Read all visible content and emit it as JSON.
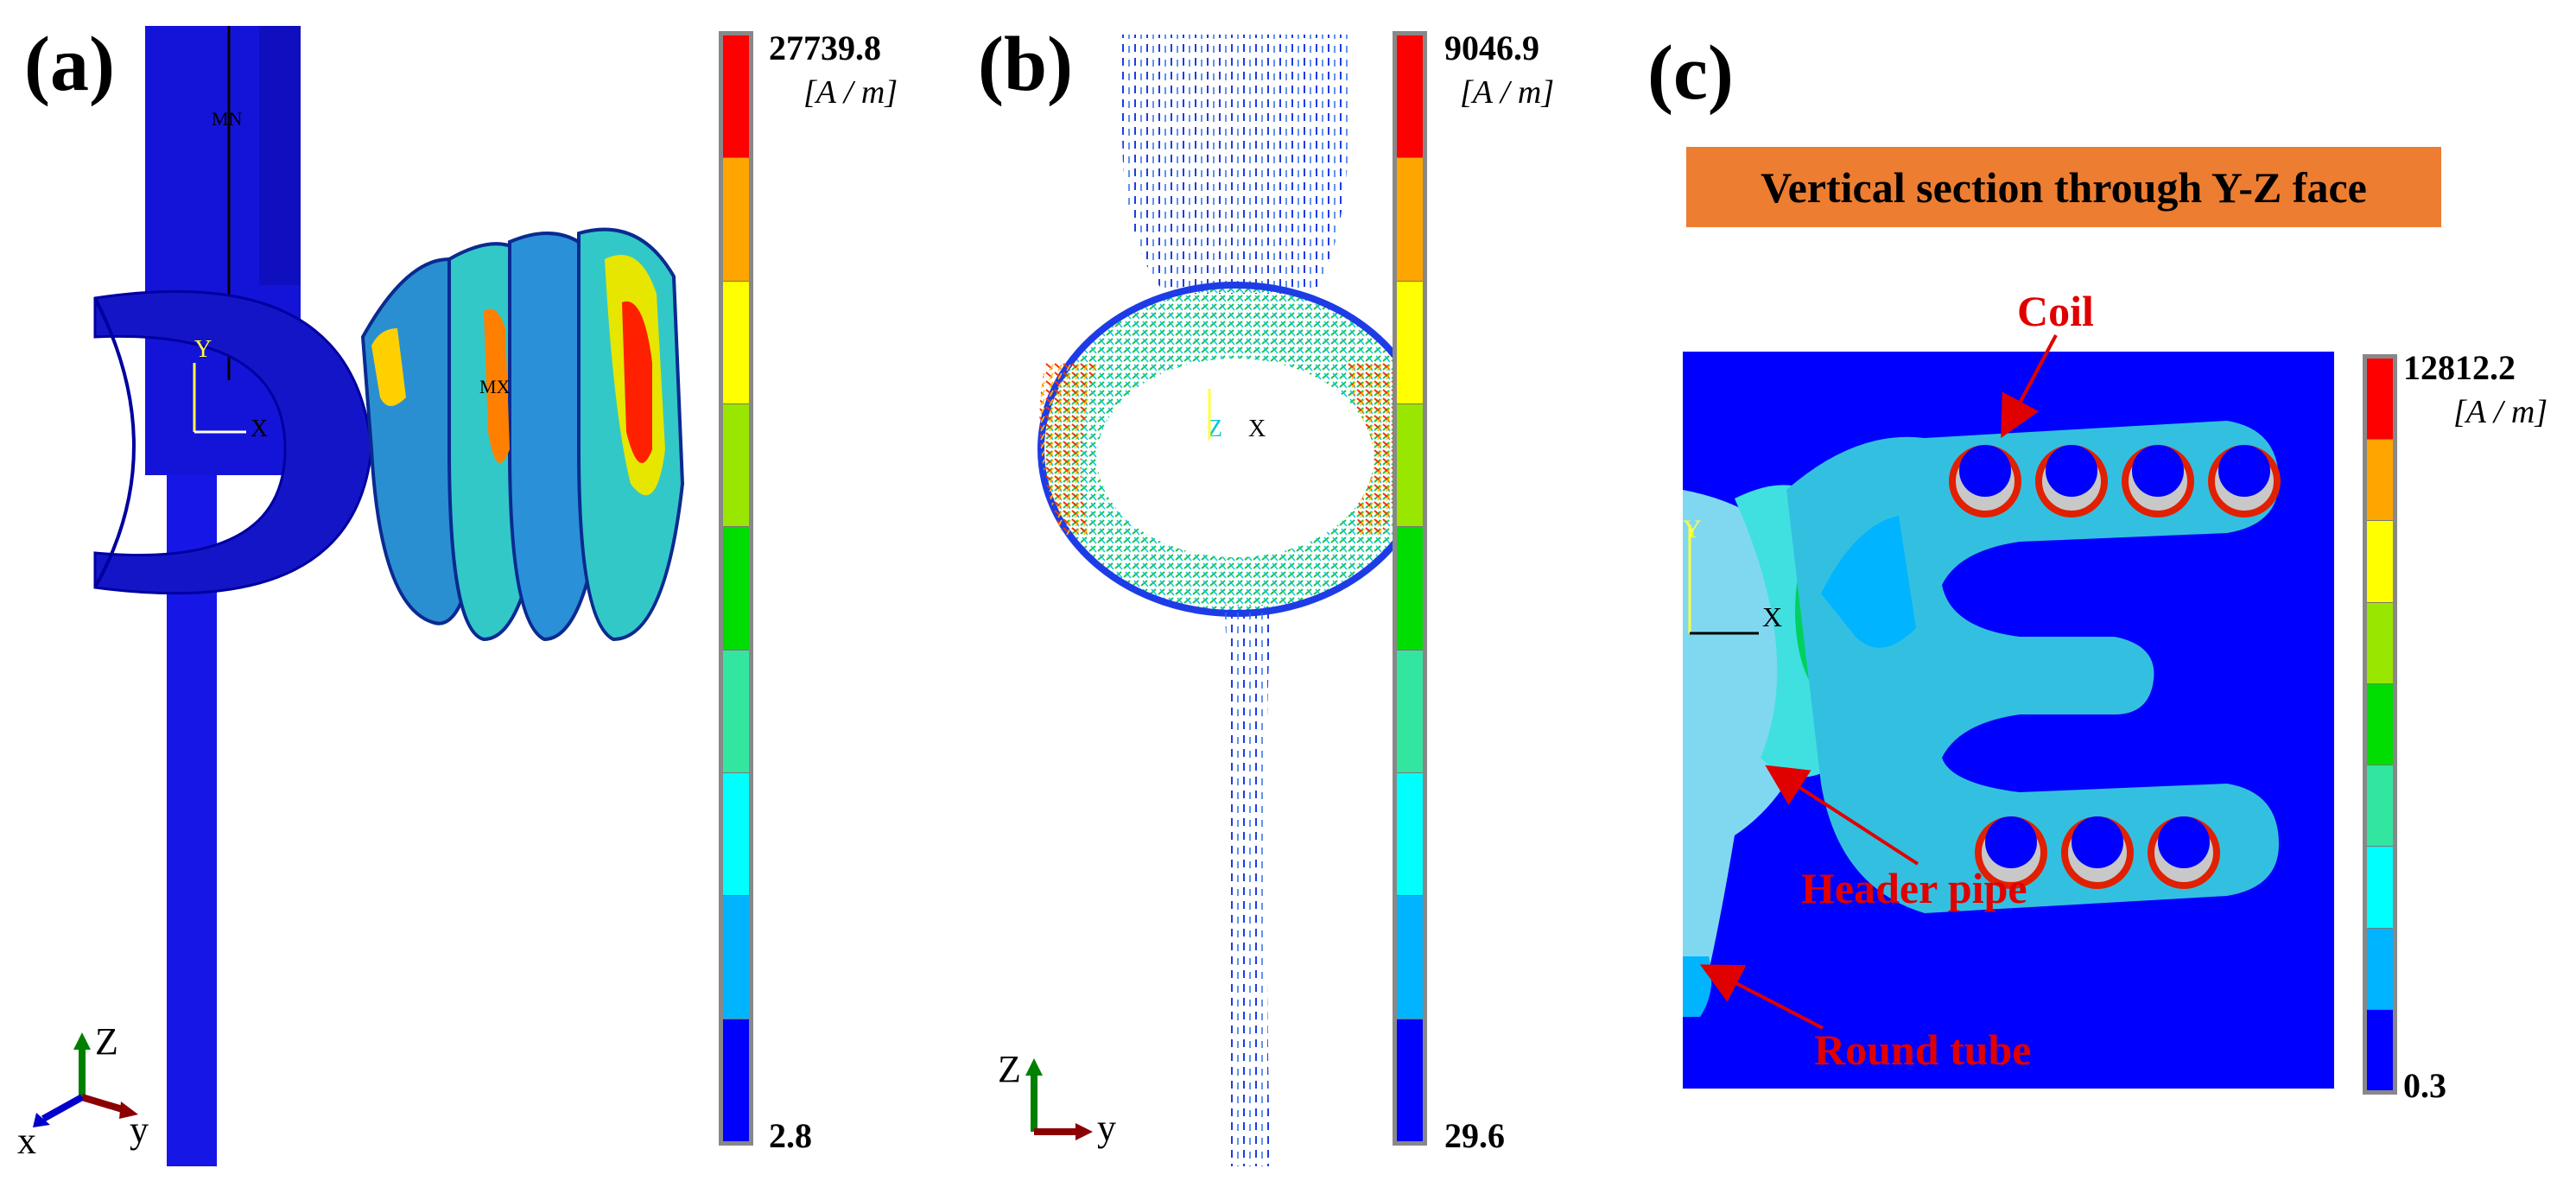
{
  "panels": [
    {
      "id": "a",
      "label": "(a)",
      "scale_max": "27739.8",
      "scale_min": "2.8",
      "unit": "[A / m]"
    },
    {
      "id": "b",
      "label": "(b)",
      "scale_max": "9046.9",
      "scale_min": "29.6",
      "unit": "[A / m]"
    },
    {
      "id": "c",
      "label": "(c)",
      "scale_max": "12812.2",
      "scale_min": "0.3",
      "unit": "[A / m]",
      "title": "Vertical section through Y-Z face"
    }
  ],
  "annotations": {
    "coil": "Coil",
    "header_pipe": "Header pipe",
    "round_tube": "Round tube"
  },
  "model_labels": {
    "mn": "MN",
    "mx": "MX",
    "y": "Y",
    "x": "X",
    "z": "Z"
  },
  "axes": {
    "a": {
      "z": "Z",
      "y": "y",
      "x": "x"
    },
    "b": {
      "z": "Z",
      "y": "y"
    }
  },
  "colorbar_colors": [
    "#FF0000",
    "#FFA500",
    "#FFFF00",
    "#99E600",
    "#00DD00",
    "#33E6A0",
    "#00FFFF",
    "#00B4FF",
    "#0000FF"
  ]
}
